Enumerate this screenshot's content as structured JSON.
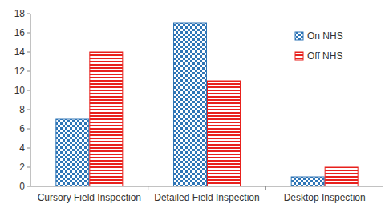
{
  "chart_data": {
    "type": "bar",
    "categories": [
      "Cursory Field Inspection",
      "Detailed Field Inspection",
      "Desktop Inspection"
    ],
    "series": [
      {
        "name": "On NHS",
        "color": "#2e75b6",
        "values": [
          7,
          17,
          1
        ]
      },
      {
        "name": "Off NHS",
        "color": "#e8211d",
        "values": [
          14,
          11,
          2
        ]
      }
    ],
    "ylim": [
      0,
      18
    ],
    "yticks": [
      0,
      2,
      4,
      6,
      8,
      10,
      12,
      14,
      16,
      18
    ],
    "grid": false,
    "legend": "top-right"
  }
}
